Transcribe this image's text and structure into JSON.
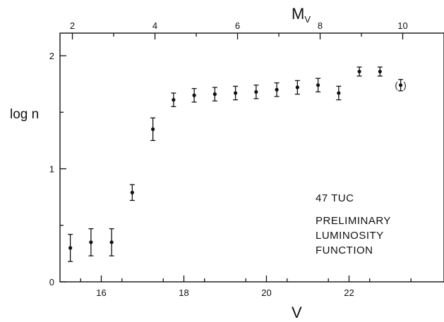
{
  "chart_data": {
    "type": "scatter",
    "title": "",
    "xlabel": "V",
    "ylabel": "log n",
    "x2label": "M",
    "x2label_subscript": "V",
    "xlim": [
      15.0,
      24.3
    ],
    "ylim": [
      0,
      2.2
    ],
    "x_ticks": [
      16,
      18,
      20,
      22
    ],
    "x_minor_ticks": [
      15.5,
      16.5,
      17.5,
      18.5,
      19.5,
      20.5,
      21.5,
      22.5,
      23.5
    ],
    "y_ticks": [
      0,
      1,
      2
    ],
    "y_minor_ticks": [
      0.5,
      1.5
    ],
    "x2_ticks": [
      2,
      4,
      6,
      8,
      10
    ],
    "x2_minor_ticks": [
      3,
      5,
      7,
      9
    ],
    "x2_offset": 13.3,
    "error_bars": true,
    "grid": false,
    "points": [
      {
        "x": 15.25,
        "y": 0.3,
        "err": 0.12
      },
      {
        "x": 15.75,
        "y": 0.35,
        "err": 0.12
      },
      {
        "x": 16.25,
        "y": 0.35,
        "err": 0.12
      },
      {
        "x": 16.75,
        "y": 0.79,
        "err": 0.07
      },
      {
        "x": 17.25,
        "y": 1.35,
        "err": 0.1
      },
      {
        "x": 17.75,
        "y": 1.61,
        "err": 0.06
      },
      {
        "x": 18.25,
        "y": 1.65,
        "err": 0.06
      },
      {
        "x": 18.75,
        "y": 1.66,
        "err": 0.06
      },
      {
        "x": 19.25,
        "y": 1.67,
        "err": 0.06
      },
      {
        "x": 19.75,
        "y": 1.68,
        "err": 0.06
      },
      {
        "x": 20.25,
        "y": 1.7,
        "err": 0.06
      },
      {
        "x": 20.75,
        "y": 1.72,
        "err": 0.06
      },
      {
        "x": 21.25,
        "y": 1.74,
        "err": 0.06
      },
      {
        "x": 21.75,
        "y": 1.67,
        "err": 0.06
      },
      {
        "x": 22.25,
        "y": 1.86,
        "err": 0.04
      },
      {
        "x": 22.75,
        "y": 1.86,
        "err": 0.04
      },
      {
        "x": 23.25,
        "y": 1.74,
        "err": 0.05,
        "parenthesized": true
      }
    ],
    "annotations": [
      "47 TUC",
      "PRELIMINARY",
      "LUMINOSITY",
      "FUNCTION"
    ]
  }
}
